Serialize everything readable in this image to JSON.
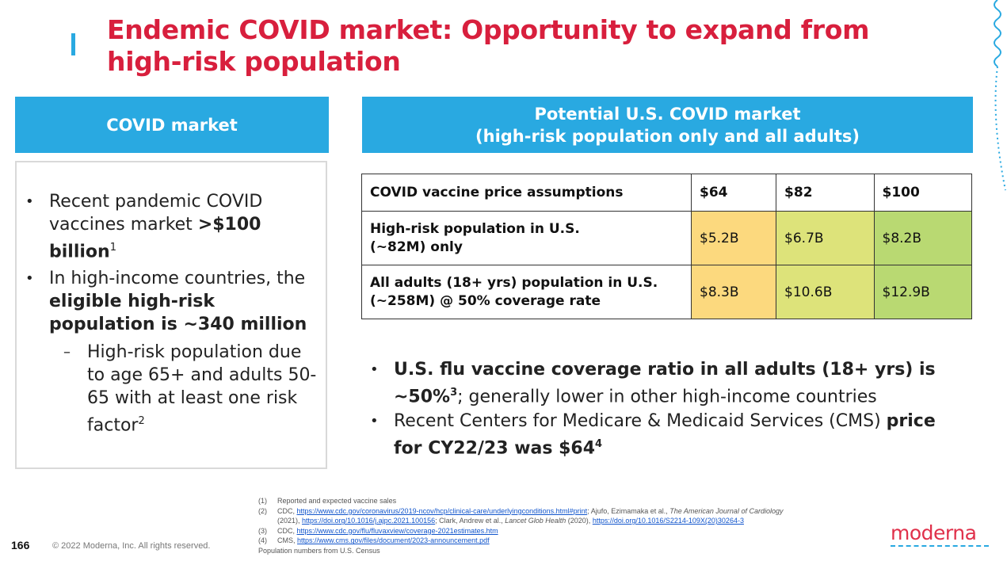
{
  "title": "Endemic COVID market: Opportunity to expand from high-risk population",
  "left_panel": {
    "header": "COVID market",
    "bullet1": {
      "text": "Recent pandemic COVID vaccines market ",
      "bold": ">$100 billion",
      "sup": "1"
    },
    "bullet2": {
      "text": "In high-income countries, the ",
      "bold": "eligible high-risk population is ~340 million"
    },
    "sub_bullet": {
      "dash": "–",
      "text": "High-risk population due to age 65+ and adults 50-65 with at least one risk factor",
      "sup": "2"
    }
  },
  "right_panel": {
    "header_line1": "Potential U.S. COVID market",
    "header_line2": "(high-risk population only and all adults)",
    "table": {
      "header": [
        "COVID vaccine price assumptions",
        "$64",
        "$82",
        "$100"
      ],
      "rows": [
        {
          "label_line1": "High-risk population in U.S.",
          "label_line2": "(~82M) only",
          "values": [
            "$5.2B",
            "$6.7B",
            "$8.2B"
          ]
        },
        {
          "label_line1": "All adults (18+ yrs) population in U.S.",
          "label_line2": "(~258M) @ 50% coverage rate",
          "values": [
            "$8.3B",
            "$10.6B",
            "$12.9B"
          ]
        }
      ],
      "colors": {
        "c64": "#fcd97e",
        "c82": "#dde37a",
        "c100": "#b9d972"
      }
    },
    "bullet1": {
      "bold": "U.S. flu vaccine coverage ratio in all adults (18+ yrs) is ~50%",
      "sup": "3",
      "text": "; generally lower in other high-income countries"
    },
    "bullet2": {
      "text": "Recent Centers for Medicare & Medicaid Services (CMS) ",
      "bold": "price for CY22/23 was $64",
      "sup": "4"
    }
  },
  "footnotes": {
    "f1": {
      "num": "(1)",
      "text": "Reported and expected vaccine sales"
    },
    "f2a": {
      "num": "(2)",
      "pre": "CDC, ",
      "link1": "https://www.cdc.gov/coronavirus/2019-ncov/hcp/clinical-care/underlyingconditions.html#print",
      "mid": ";   Ajufo,  Ezimamaka et al., ",
      "italic": "The American Journal of Cardiology"
    },
    "f2b": {
      "pre": "(2021), ",
      "link1": "https://doi.org/10.1016/j.ajpc.2021.100156",
      "mid": "; Clark, Andrew et al., ",
      "italic": "Lancet Glob Health",
      "mid2": " (2020), ",
      "link2": "https://doi.org/10.1016/S2214-109X(20)30264-3"
    },
    "f3": {
      "num": "(3)",
      "pre": "CDC, ",
      "link": "https://www.cdc.gov/flu/fluvaxview/coverage-2021estimates.htm"
    },
    "f4": {
      "num": "(4)",
      "pre": "CMS, ",
      "link": "https://www.cms.gov/files/document/2023-announcement.pdf"
    },
    "f5": "Population  numbers from U.S. Census"
  },
  "footer": {
    "page_number": "166",
    "copyright": "© 2022 Moderna, Inc. All rights reserved.",
    "logo": "moderna"
  }
}
